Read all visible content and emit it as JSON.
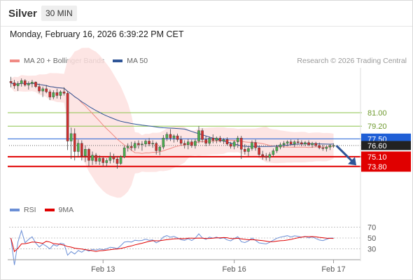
{
  "header": {
    "symbol": "Silver",
    "interval": "30 MIN"
  },
  "datetime": "Monday, February 16, 2026 6:39:22 PM CET",
  "legend": {
    "ma20_label": "MA 20 + Bollinger Bands",
    "ma20_color": "#f08a84",
    "ma50_label": "MA 50",
    "ma50_color": "#2f5597"
  },
  "credit": "Research © 2026 Trading Central",
  "rsi_legend": {
    "rsi_label": "RSI",
    "rsi_color": "#6b8fd6",
    "ma_label": "9MA",
    "ma_color": "#e00000"
  },
  "chart_data": {
    "type": "candlestick",
    "instrument": "Silver",
    "interval": "30 MIN",
    "x_ticks": [
      "Feb 13",
      "Feb 16",
      "Feb 17"
    ],
    "levels": [
      {
        "value": 81.0,
        "label": "81.00",
        "kind": "resistance",
        "color": "#8bc34a"
      },
      {
        "value": 79.2,
        "label": "79.20",
        "kind": "resistance",
        "color": "#8bc34a"
      },
      {
        "value": 77.5,
        "label": "77.50",
        "kind": "pivot",
        "color": "#1f5fd6"
      },
      {
        "value": 75.1,
        "label": "75.10",
        "kind": "support",
        "color": "#e00000"
      },
      {
        "value": 73.8,
        "label": "73.80",
        "kind": "support",
        "color": "#e00000"
      }
    ],
    "last_price": {
      "value": 76.6,
      "label": "76.60"
    },
    "y_range": [
      69.0,
      87.0
    ],
    "rsi_ticks": [
      70,
      50,
      30
    ],
    "rsi_range": [
      15,
      85
    ],
    "candles": [
      [
        85.2,
        85.8,
        84.4,
        85.0
      ],
      [
        85.0,
        85.4,
        84.2,
        84.6
      ],
      [
        84.6,
        85.2,
        83.9,
        84.9
      ],
      [
        84.9,
        85.6,
        84.5,
        85.3
      ],
      [
        85.3,
        85.5,
        84.5,
        84.7
      ],
      [
        84.7,
        85.2,
        84.1,
        84.9
      ],
      [
        84.9,
        85.4,
        84.4,
        85.1
      ],
      [
        85.1,
        85.2,
        84.3,
        84.5
      ],
      [
        84.5,
        84.9,
        83.6,
        83.9
      ],
      [
        83.9,
        84.5,
        83.1,
        84.2
      ],
      [
        84.2,
        84.7,
        83.6,
        83.8
      ],
      [
        83.8,
        84.1,
        82.7,
        83.1
      ],
      [
        83.1,
        84.0,
        82.8,
        83.7
      ],
      [
        83.7,
        84.2,
        82.9,
        83.3
      ],
      [
        83.3,
        84.0,
        82.8,
        83.8
      ],
      [
        83.8,
        84.4,
        83.3,
        83.6
      ],
      [
        83.6,
        83.9,
        76.0,
        77.2
      ],
      [
        77.2,
        79.0,
        74.8,
        78.2
      ],
      [
        78.2,
        78.9,
        74.6,
        75.8
      ],
      [
        75.8,
        77.4,
        75.0,
        76.9
      ],
      [
        76.9,
        77.3,
        74.6,
        75.2
      ],
      [
        75.2,
        76.6,
        74.4,
        76.1
      ],
      [
        76.1,
        76.3,
        73.8,
        74.6
      ],
      [
        74.6,
        75.8,
        74.0,
        75.3
      ],
      [
        75.3,
        75.6,
        74.1,
        74.5
      ],
      [
        74.5,
        75.3,
        74.0,
        74.9
      ],
      [
        74.9,
        75.1,
        73.8,
        74.3
      ],
      [
        74.3,
        74.9,
        73.8,
        74.6
      ],
      [
        74.6,
        75.7,
        74.2,
        75.1
      ],
      [
        75.1,
        75.5,
        74.3,
        74.8
      ],
      [
        74.8,
        75.2,
        73.5,
        74.2
      ],
      [
        74.2,
        75.3,
        74.0,
        75.1
      ],
      [
        75.1,
        76.6,
        74.9,
        76.3
      ],
      [
        76.3,
        76.9,
        75.8,
        76.5
      ],
      [
        76.5,
        77.1,
        75.9,
        76.3
      ],
      [
        76.3,
        77.2,
        75.9,
        76.9
      ],
      [
        76.9,
        77.3,
        76.2,
        76.7
      ],
      [
        76.7,
        77.2,
        75.9,
        76.8
      ],
      [
        76.8,
        77.4,
        76.4,
        77.2
      ],
      [
        77.2,
        77.6,
        76.5,
        76.8
      ],
      [
        76.8,
        77.3,
        76.3,
        76.9
      ],
      [
        76.9,
        77.1,
        75.4,
        75.9
      ],
      [
        75.9,
        76.6,
        75.3,
        76.4
      ],
      [
        76.4,
        78.0,
        76.1,
        77.6
      ],
      [
        77.6,
        78.4,
        77.2,
        78.1
      ],
      [
        78.1,
        78.8,
        77.2,
        77.6
      ],
      [
        77.6,
        78.1,
        77.0,
        77.9
      ],
      [
        77.9,
        78.2,
        77.1,
        77.4
      ],
      [
        77.4,
        77.9,
        76.6,
        76.9
      ],
      [
        76.9,
        77.3,
        76.2,
        76.7
      ],
      [
        76.7,
        77.5,
        76.1,
        77.1
      ],
      [
        77.1,
        77.4,
        76.3,
        76.6
      ],
      [
        76.6,
        77.5,
        76.2,
        77.2
      ],
      [
        77.2,
        79.2,
        76.9,
        78.6
      ],
      [
        78.6,
        78.9,
        77.0,
        77.4
      ],
      [
        77.4,
        77.9,
        76.5,
        76.9
      ],
      [
        76.9,
        77.8,
        76.6,
        77.6
      ],
      [
        77.6,
        78.1,
        76.9,
        77.3
      ],
      [
        77.3,
        77.8,
        76.9,
        77.6
      ],
      [
        77.6,
        77.9,
        77.0,
        77.2
      ],
      [
        77.2,
        77.6,
        76.8,
        77.4
      ],
      [
        77.4,
        77.7,
        76.6,
        76.8
      ],
      [
        76.8,
        77.1,
        76.2,
        76.5
      ],
      [
        76.5,
        77.3,
        76.1,
        77.1
      ],
      [
        77.1,
        77.9,
        76.3,
        77.6
      ],
      [
        77.6,
        77.9,
        74.8,
        76.1
      ],
      [
        76.1,
        76.8,
        75.4,
        75.8
      ],
      [
        75.8,
        76.5,
        75.2,
        76.2
      ],
      [
        76.2,
        77.3,
        75.9,
        77.0
      ],
      [
        77.0,
        77.4,
        75.9,
        76.3
      ],
      [
        76.3,
        76.6,
        75.1,
        75.4
      ],
      [
        75.4,
        75.9,
        74.7,
        75.2
      ],
      [
        75.2,
        75.6,
        74.6,
        75.0
      ],
      [
        75.0,
        75.7,
        74.5,
        75.4
      ],
      [
        75.4,
        76.2,
        75.1,
        75.9
      ],
      [
        75.9,
        76.7,
        75.6,
        76.4
      ],
      [
        76.4,
        77.0,
        76.1,
        76.7
      ],
      [
        76.7,
        77.2,
        76.3,
        76.9
      ],
      [
        76.9,
        77.3,
        76.5,
        77.1
      ],
      [
        77.1,
        77.4,
        76.6,
        76.8
      ],
      [
        76.8,
        77.3,
        76.4,
        77.1
      ],
      [
        77.1,
        77.5,
        76.7,
        77.0
      ],
      [
        77.0,
        77.3,
        76.5,
        76.8
      ],
      [
        76.8,
        77.2,
        76.5,
        77.0
      ],
      [
        77.0,
        77.3,
        76.5,
        76.7
      ],
      [
        76.7,
        77.1,
        76.3,
        76.9
      ],
      [
        76.9,
        77.1,
        76.4,
        76.6
      ],
      [
        76.6,
        77.0,
        76.1,
        76.3
      ],
      [
        76.3,
        76.7,
        75.9,
        76.2
      ],
      [
        76.2,
        76.6,
        75.8,
        76.4
      ],
      [
        76.4,
        76.8,
        76.0,
        76.6
      ],
      [
        76.6,
        76.9,
        76.3,
        76.6
      ]
    ]
  }
}
